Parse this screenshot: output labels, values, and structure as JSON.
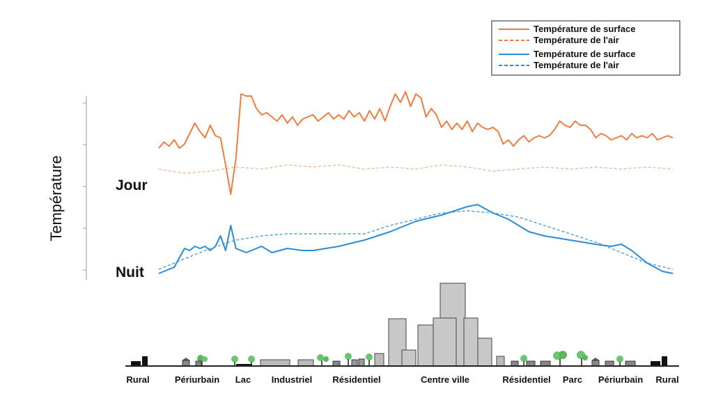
{
  "chart_data": {
    "type": "line",
    "ylabel": "Température",
    "period_labels": {
      "day": "Jour",
      "night": "Nuit"
    },
    "grid": false,
    "legend_position": "top-right",
    "legend": [
      {
        "label": "Température de surface",
        "color": "#f07b3f",
        "style": "solid"
      },
      {
        "label": "Température de l'air",
        "color": "#f07b3f",
        "style": "dashed"
      },
      {
        "label": "Température de surface",
        "color": "#2a8bd6",
        "style": "solid"
      },
      {
        "label": "Température de l'air",
        "color": "#2a8bd6",
        "style": "dashed"
      }
    ],
    "zones": [
      "Rural",
      "Périurbain",
      "Lac",
      "Industriel",
      "Résidentiel",
      "Centre ville",
      "Résidentiel",
      "Parc",
      "Périurbain",
      "Rural"
    ],
    "series": [
      {
        "period": "day",
        "kind": "surface",
        "x": [
          0,
          1,
          2,
          3,
          4,
          5,
          7,
          8,
          9,
          10,
          11,
          12,
          13,
          14,
          15,
          16,
          17,
          18,
          19,
          20,
          21,
          22,
          23,
          24,
          25,
          26,
          27,
          28,
          30,
          31,
          32,
          33,
          34,
          35,
          36,
          37,
          38,
          39,
          40,
          41,
          42,
          43,
          44,
          45,
          46,
          47,
          48,
          49,
          50,
          51,
          52,
          53,
          54,
          55,
          56,
          57,
          58,
          59,
          60,
          61,
          62,
          63,
          64,
          65,
          66,
          67,
          68,
          69,
          70,
          71,
          72,
          73,
          74,
          75,
          76,
          77,
          78,
          79,
          80,
          81,
          82,
          83,
          84,
          85,
          86,
          87,
          88,
          89,
          90,
          91,
          92,
          93,
          94,
          95,
          96,
          97,
          98,
          99,
          100
        ],
        "y": [
          6.0,
          6.3,
          6.1,
          6.4,
          6.0,
          6.2,
          7.2,
          6.8,
          6.5,
          7.1,
          6.6,
          6.5,
          5.2,
          3.8,
          5.5,
          8.6,
          8.5,
          8.5,
          7.9,
          7.6,
          7.7,
          7.5,
          7.3,
          7.6,
          7.2,
          7.5,
          7.1,
          7.4,
          7.6,
          7.3,
          7.5,
          7.7,
          7.4,
          7.6,
          7.4,
          7.8,
          7.5,
          7.7,
          7.3,
          7.8,
          7.4,
          7.9,
          7.3,
          8.0,
          8.6,
          8.2,
          8.7,
          8.0,
          8.6,
          8.4,
          7.5,
          7.9,
          7.6,
          7.0,
          7.3,
          6.9,
          7.2,
          6.9,
          7.3,
          6.8,
          7.2,
          7.0,
          6.9,
          7.0,
          6.8,
          6.2,
          6.4,
          6.1,
          6.4,
          6.6,
          6.3,
          6.5,
          6.6,
          6.5,
          6.6,
          6.9,
          7.3,
          7.1,
          7.0,
          7.3,
          7.1,
          7.1,
          6.9,
          6.5,
          6.7,
          6.6,
          6.4,
          6.5,
          6.6,
          6.4,
          6.7,
          6.5,
          6.6,
          6.5,
          6.7,
          6.4,
          6.5,
          6.6,
          6.5
        ]
      },
      {
        "period": "day",
        "kind": "air",
        "x": [
          0,
          5,
          10,
          15,
          20,
          25,
          30,
          35,
          40,
          45,
          50,
          55,
          60,
          65,
          70,
          75,
          80,
          85,
          90,
          95,
          100
        ],
        "y": [
          5.0,
          4.8,
          4.9,
          5.1,
          5.0,
          5.2,
          5.1,
          5.2,
          5.0,
          5.1,
          5.0,
          5.2,
          5.1,
          4.9,
          5.0,
          5.1,
          5.0,
          5.1,
          5.0,
          5.1,
          5.0
        ]
      },
      {
        "period": "night",
        "kind": "surface",
        "x": [
          0,
          3,
          5,
          6,
          7,
          8,
          9,
          10,
          11,
          12,
          13,
          14,
          15,
          16,
          17,
          18,
          20,
          22,
          25,
          28,
          30,
          35,
          40,
          45,
          50,
          55,
          60,
          62,
          65,
          68,
          70,
          72,
          75,
          80,
          85,
          88,
          90,
          92,
          95,
          98,
          100
        ],
        "y": [
          0.0,
          0.3,
          1.2,
          1.1,
          1.3,
          1.2,
          1.3,
          1.1,
          1.3,
          1.8,
          1.1,
          2.3,
          1.2,
          1.1,
          1.0,
          1.1,
          1.3,
          1.0,
          1.2,
          1.1,
          1.1,
          1.3,
          1.6,
          2.0,
          2.5,
          2.8,
          3.2,
          3.3,
          2.9,
          2.6,
          2.3,
          2.0,
          1.8,
          1.6,
          1.4,
          1.3,
          1.4,
          1.1,
          0.5,
          0.1,
          0.0
        ]
      },
      {
        "period": "night",
        "kind": "air",
        "x": [
          0,
          5,
          10,
          15,
          20,
          25,
          30,
          35,
          40,
          45,
          50,
          55,
          60,
          65,
          70,
          75,
          80,
          85,
          90,
          95,
          100
        ],
        "y": [
          0.2,
          0.7,
          1.2,
          1.6,
          1.8,
          1.9,
          1.9,
          1.9,
          1.9,
          2.3,
          2.6,
          2.9,
          3.0,
          2.9,
          2.7,
          2.3,
          1.9,
          1.5,
          1.0,
          0.5,
          0.2
        ]
      }
    ]
  }
}
